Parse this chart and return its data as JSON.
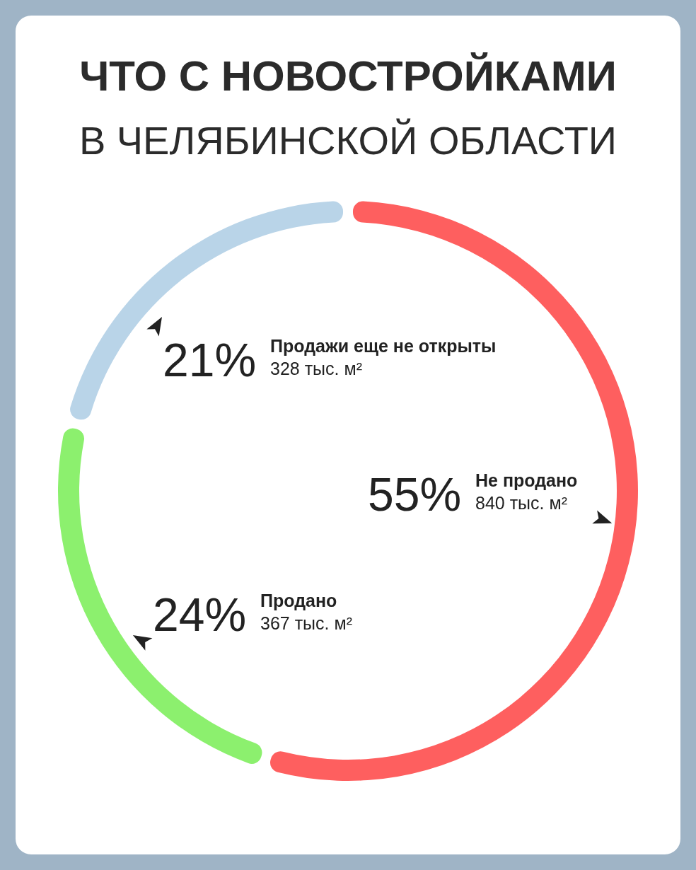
{
  "chart_data": {
    "type": "donut",
    "title": "ЧТО С НОВОСТРОЙКАМИ",
    "subtitle": "В ЧЕЛЯБИНСКОЙ ОБЛАСТИ",
    "categories": [
      "Не продано",
      "Продано",
      "Продажи еще не открыты"
    ],
    "values": [
      55,
      24,
      21
    ],
    "value_labels": [
      "55%",
      "24%",
      "21%"
    ],
    "colors": [
      "#fe5f5f",
      "#8cf06e",
      "#b9d4e8"
    ],
    "annotations": [
      "840 тыс. м²",
      "367 тыс. м²",
      "328 тыс. м²"
    ]
  }
}
